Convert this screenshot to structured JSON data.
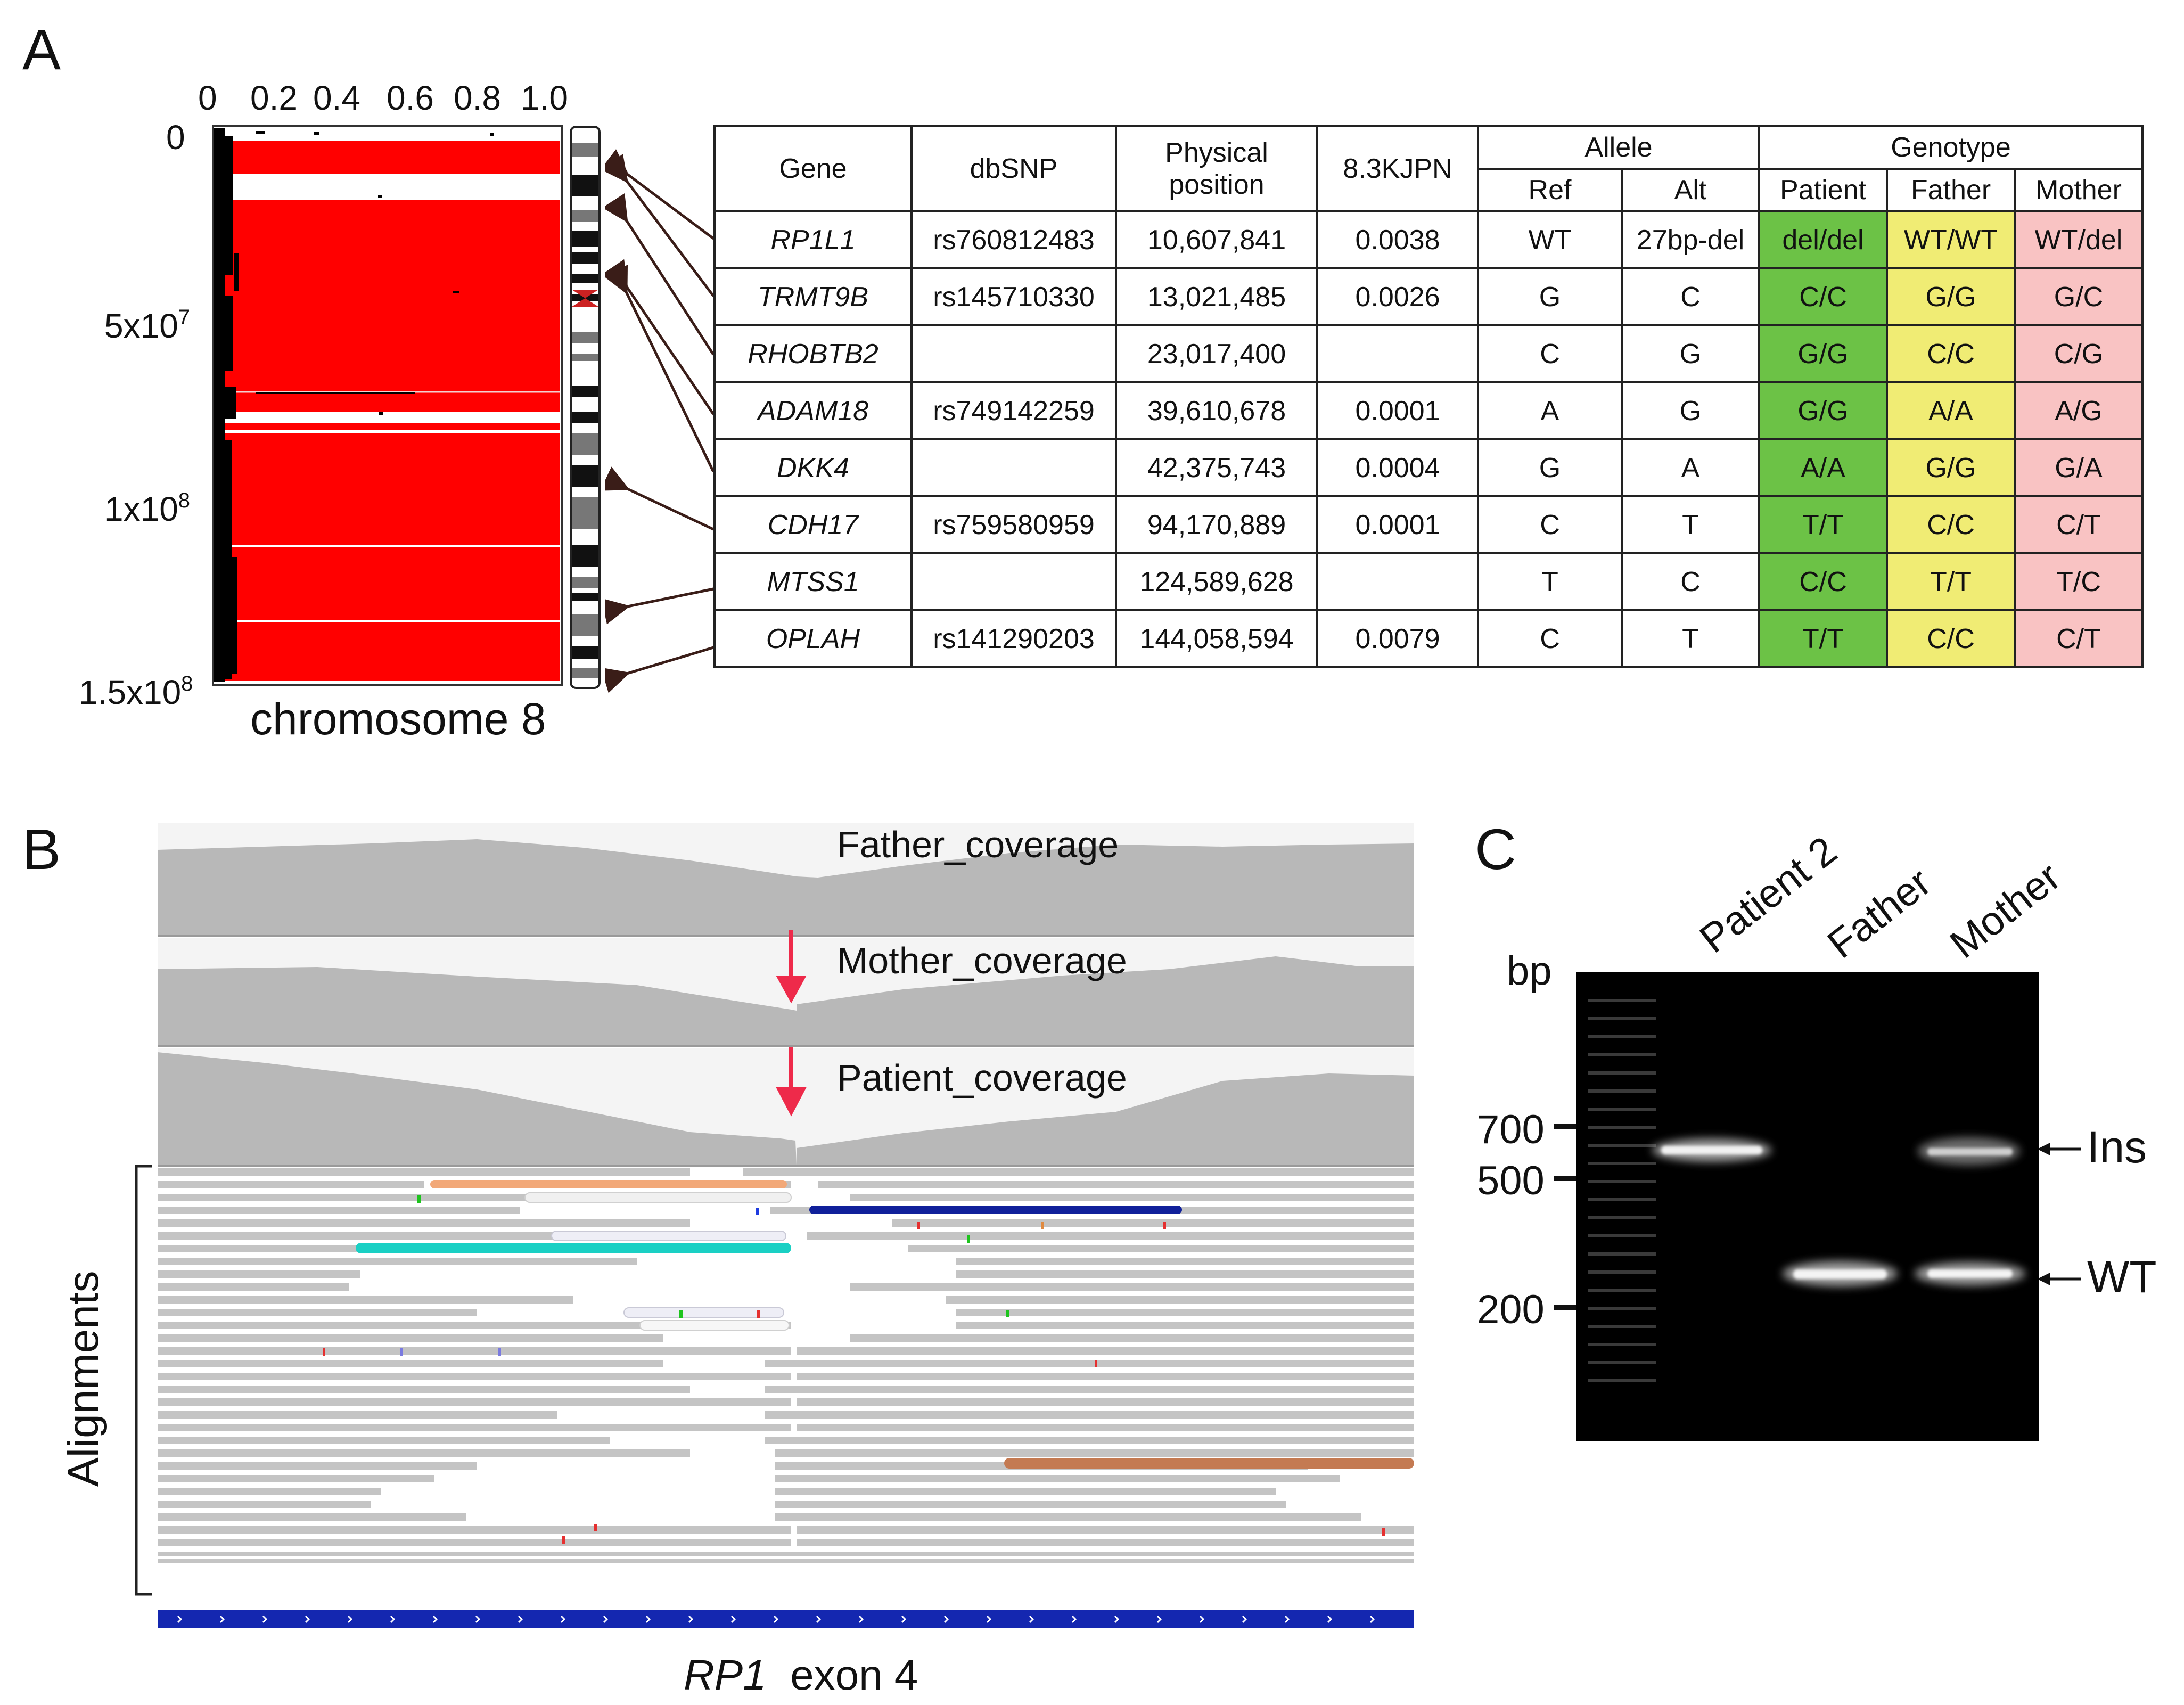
{
  "panels": {
    "a": "A",
    "b": "B",
    "c": "C"
  },
  "panel_a": {
    "x_ticks": [
      "0",
      "0.2",
      "0.4",
      "0.6",
      "0.8",
      "1.0"
    ],
    "y_ticks": [
      {
        "base": "0",
        "exp": ""
      },
      {
        "base": "5x10",
        "exp": "7"
      },
      {
        "base": "1x10",
        "exp": "8"
      },
      {
        "base": "1.5x10",
        "exp": "8"
      }
    ],
    "chromosome_label": "chromosome 8",
    "table": {
      "headers": {
        "gene": "Gene",
        "dbsnp": "dbSNP",
        "position_line1": "Physical",
        "position_line2": "position",
        "freq": "8.3KJPN",
        "allele": "Allele",
        "genotype": "Genotype",
        "ref": "Ref",
        "alt": "Alt",
        "patient": "Patient",
        "father": "Father",
        "mother": "Mother"
      },
      "rows": [
        {
          "gene": "RP1L1",
          "dbsnp": "rs760812483",
          "position": "10,607,841",
          "freq": "0.0038",
          "ref": "WT",
          "alt": "27bp-del",
          "patient": "del/del",
          "father": "WT/WT",
          "mother": "WT/del"
        },
        {
          "gene": "TRMT9B",
          "dbsnp": "rs145710330",
          "position": "13,021,485",
          "freq": "0.0026",
          "ref": "G",
          "alt": "C",
          "patient": "C/C",
          "father": "G/G",
          "mother": "G/C"
        },
        {
          "gene": "RHOBTB2",
          "dbsnp": "",
          "position": "23,017,400",
          "freq": "",
          "ref": "C",
          "alt": "G",
          "patient": "G/G",
          "father": "C/C",
          "mother": "C/G"
        },
        {
          "gene": "ADAM18",
          "dbsnp": "rs749142259",
          "position": "39,610,678",
          "freq": "0.0001",
          "ref": "A",
          "alt": "G",
          "patient": "G/G",
          "father": "A/A",
          "mother": "A/G"
        },
        {
          "gene": "DKK4",
          "dbsnp": "",
          "position": "42,375,743",
          "freq": "0.0004",
          "ref": "G",
          "alt": "A",
          "patient": "A/A",
          "father": "G/G",
          "mother": "G/A"
        },
        {
          "gene": "CDH17",
          "dbsnp": "rs759580959",
          "position": "94,170,889",
          "freq": "0.0001",
          "ref": "C",
          "alt": "T",
          "patient": "T/T",
          "father": "C/C",
          "mother": "C/T"
        },
        {
          "gene": "MTSS1",
          "dbsnp": "",
          "position": "124,589,628",
          "freq": "",
          "ref": "T",
          "alt": "C",
          "patient": "C/C",
          "father": "T/T",
          "mother": "T/C"
        },
        {
          "gene": "OPLAH",
          "dbsnp": "rs141290203",
          "position": "144,058,594",
          "freq": "0.0079",
          "ref": "C",
          "alt": "T",
          "patient": "T/T",
          "father": "C/C",
          "mother": "C/T"
        }
      ]
    }
  },
  "panel_b": {
    "tracks": [
      "Father_coverage",
      "Mother_coverage",
      "Patient_coverage"
    ],
    "alignments_label": "Alignments",
    "gene_label": "RP1",
    "exon_label": "exon 4"
  },
  "panel_c": {
    "lanes": [
      "Patient 2",
      "Father",
      "Mother"
    ],
    "bp_label": "bp",
    "markers": [
      "700",
      "500",
      "200"
    ],
    "bands": [
      "Ins",
      "WT"
    ]
  },
  "colors": {
    "homozygosity": "#ff0000",
    "patient": "#6cc246",
    "father": "#f0ec74",
    "mother": "#f9c3c3",
    "coverage": "#b8b8b8",
    "read": "#c4c4c4",
    "gene_track": "#1427b0",
    "arrow": "#ee2a4a"
  }
}
